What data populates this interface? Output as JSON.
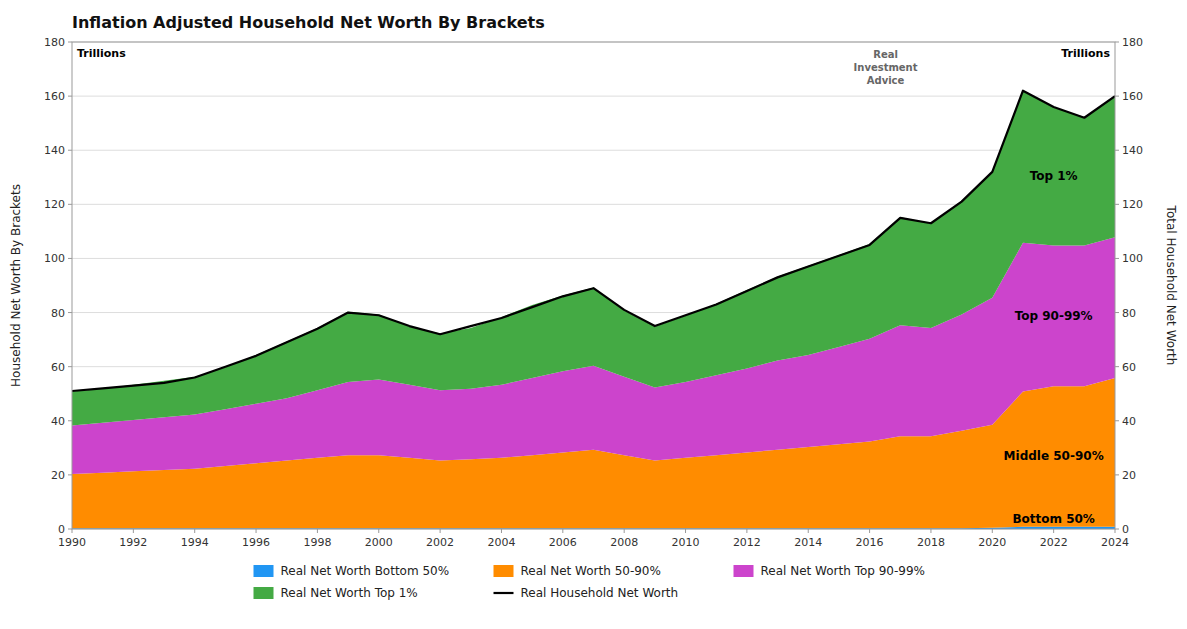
{
  "chart_data": {
    "type": "area",
    "stacked": true,
    "title": "Inflation Adjusted Household Net Worth By Brackets",
    "ylabel": "Household Net Worth By Brackets",
    "y2label": "Total Household Net Worth",
    "annotations": [
      "Trillions",
      "Trillions",
      "Real\nInvestment\nAdvice",
      "Top 1%",
      "Top 90-99%",
      "Middle 50-90%",
      "Bottom 50%"
    ],
    "x": [
      1990,
      1991,
      1992,
      1993,
      1994,
      1995,
      1996,
      1997,
      1998,
      1999,
      2000,
      2001,
      2002,
      2003,
      2004,
      2005,
      2006,
      2007,
      2008,
      2009,
      2010,
      2011,
      2012,
      2013,
      2014,
      2015,
      2016,
      2017,
      2018,
      2019,
      2020,
      2021,
      2022,
      2023,
      2024
    ],
    "xlim": [
      1990,
      2024
    ],
    "xticks": [
      1990,
      1992,
      1994,
      1996,
      1998,
      2000,
      2002,
      2004,
      2006,
      2008,
      2010,
      2012,
      2014,
      2016,
      2018,
      2020,
      2022,
      2024
    ],
    "ylim": [
      0,
      180
    ],
    "yticks": [
      0,
      20,
      40,
      60,
      80,
      100,
      120,
      140,
      160,
      180
    ],
    "y2lim": [
      0,
      180
    ],
    "y2ticks": [
      0,
      20,
      40,
      60,
      80,
      100,
      120,
      140,
      160,
      180
    ],
    "grid": true,
    "legend": "bottom",
    "series": [
      {
        "name": "Real Net Worth Bottom 50%",
        "type": "area",
        "color": "#2196f3",
        "values": [
          0.3,
          0.3,
          0.3,
          0.3,
          0.3,
          0.3,
          0.3,
          0.3,
          0.3,
          0.3,
          0.3,
          0.3,
          0.3,
          0.3,
          0.3,
          0.3,
          0.3,
          0.3,
          0.3,
          0.3,
          0.3,
          0.3,
          0.3,
          0.3,
          0.3,
          0.3,
          0.3,
          0.3,
          0.3,
          0.3,
          0.5,
          0.8,
          0.8,
          0.8,
          0.8
        ]
      },
      {
        "name": "Real Net Worth 50-90%",
        "type": "area",
        "color": "#ff8c00",
        "values": [
          20,
          20.5,
          21,
          21.5,
          22,
          23,
          24,
          25,
          26,
          27,
          27,
          26,
          25,
          25.5,
          26,
          27,
          28,
          29,
          27,
          25,
          26,
          27,
          28,
          29,
          30,
          31,
          32,
          34,
          34,
          36,
          38,
          50,
          52,
          52,
          55
        ]
      },
      {
        "name": "Real Net Worth Top 90-99%",
        "type": "area",
        "color": "#cc44cc",
        "values": [
          18,
          18.5,
          19,
          19.5,
          20,
          21,
          22,
          23,
          25,
          27,
          28,
          27,
          26,
          26,
          27,
          28.5,
          30,
          31,
          29,
          27,
          28,
          29.5,
          31,
          33,
          34,
          36,
          38,
          41,
          40,
          43,
          47,
          55,
          52,
          52,
          52
        ]
      },
      {
        "name": "Real Net Worth Top 1%",
        "type": "area",
        "color": "#44aa44",
        "values": [
          12.5,
          12.5,
          13,
          13.5,
          14,
          15.5,
          18,
          21,
          23,
          26,
          24,
          21.5,
          21,
          22.5,
          25,
          27,
          28,
          29,
          24.5,
          22.5,
          24.5,
          26.5,
          29,
          31,
          33,
          34,
          35,
          40,
          38.5,
          42,
          46.5,
          56,
          51,
          47.5,
          52
        ]
      },
      {
        "name": "Real Household Net Worth",
        "type": "line",
        "color": "#000000",
        "values": [
          51,
          52,
          53,
          54,
          56,
          60,
          64,
          69,
          74,
          80,
          79,
          75,
          72,
          75,
          78,
          82,
          86,
          89,
          81,
          75,
          79,
          83,
          88,
          93,
          97,
          101,
          105,
          115,
          113,
          121,
          132,
          162,
          156,
          152,
          160
        ]
      }
    ]
  }
}
